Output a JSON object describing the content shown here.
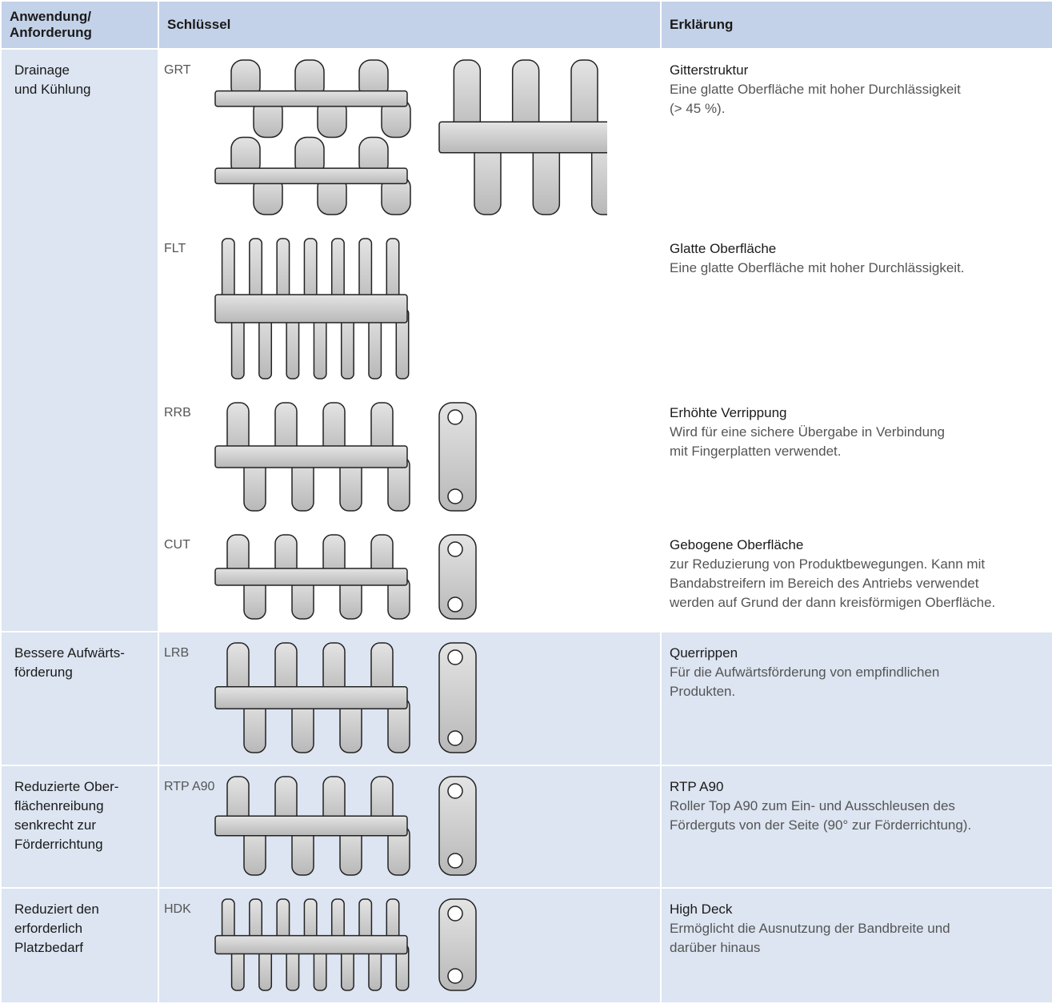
{
  "header": {
    "application": [
      "Anwendung/",
      "Anforderung"
    ],
    "key": "Schlüssel",
    "explanation": "Erklärung"
  },
  "groups": [
    {
      "application": [
        "Drainage",
        "und Kühlung"
      ],
      "rows": [
        {
          "key": "GRT",
          "title": "Gitterstruktur",
          "description": [
            "Eine glatte Oberfläche mit hoher Durchlässigkeit",
            "(> 45 %)."
          ]
        },
        {
          "key": "FLT",
          "title": "Glatte Oberfläche",
          "description": [
            "Eine glatte Oberfläche mit hoher Durchlässigkeit."
          ]
        },
        {
          "key": "RRB",
          "title": "Erhöhte Verrippung",
          "description": [
            "Wird für eine sichere Übergabe in Verbindung",
            "mit Fingerplatten verwendet."
          ]
        },
        {
          "key": "CUT",
          "title": "Gebogene Oberfläche",
          "description": [
            "zur Reduzierung von Produktbewegungen. Kann mit",
            "Bandabstreifern im Bereich des Antriebs verwendet",
            "werden auf Grund der dann kreisförmigen Oberfläche."
          ]
        }
      ]
    },
    {
      "application": [
        "Bessere Aufwärts-",
        "förderung"
      ],
      "rows": [
        {
          "key": "LRB",
          "title": "Querrippen",
          "description": [
            "Für die Aufwärtsförderung von empfindlichen",
            "Produkten."
          ]
        }
      ]
    },
    {
      "application": [
        "Reduzierte Ober-",
        "flächenreibung",
        "senkrecht zur",
        "Förderrichtung"
      ],
      "rows": [
        {
          "key": "RTP A90",
          "title": "RTP A90",
          "description": [
            "Roller Top A90 zum Ein- und Ausschleusen des",
            "Förderguts von der Seite (90° zur Förderrichtung)."
          ]
        }
      ]
    },
    {
      "application": [
        "Reduziert den",
        "erforderlich",
        "Platzbedarf"
      ],
      "rows": [
        {
          "key": "HDK",
          "title": "High Deck",
          "description": [
            "Ermöglicht die Ausnutzung der Bandbreite und",
            "darüber hinaus"
          ]
        }
      ]
    }
  ]
}
